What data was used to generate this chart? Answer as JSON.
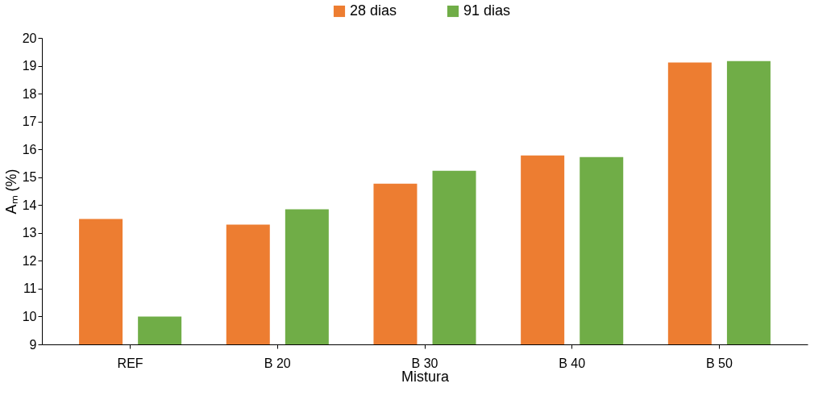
{
  "chart_data": {
    "type": "bar",
    "xlabel": "Mistura",
    "ylabel": "Aₘ (%)",
    "categories": [
      "REF",
      "B 20",
      "B 30",
      "B 40",
      "B 50"
    ],
    "series": [
      {
        "name": "28 dias",
        "color": "#ed7d31",
        "values": [
          13.5,
          13.3,
          14.77,
          15.78,
          19.12
        ]
      },
      {
        "name": "91 dias",
        "color": "#70ad47",
        "values": [
          10.0,
          13.85,
          15.23,
          15.72,
          19.17
        ]
      }
    ],
    "ylim": [
      9,
      20
    ],
    "yticks": [
      9,
      10,
      11,
      12,
      13,
      14,
      15,
      16,
      17,
      18,
      19,
      20
    ],
    "grid": false,
    "legend": "top"
  }
}
